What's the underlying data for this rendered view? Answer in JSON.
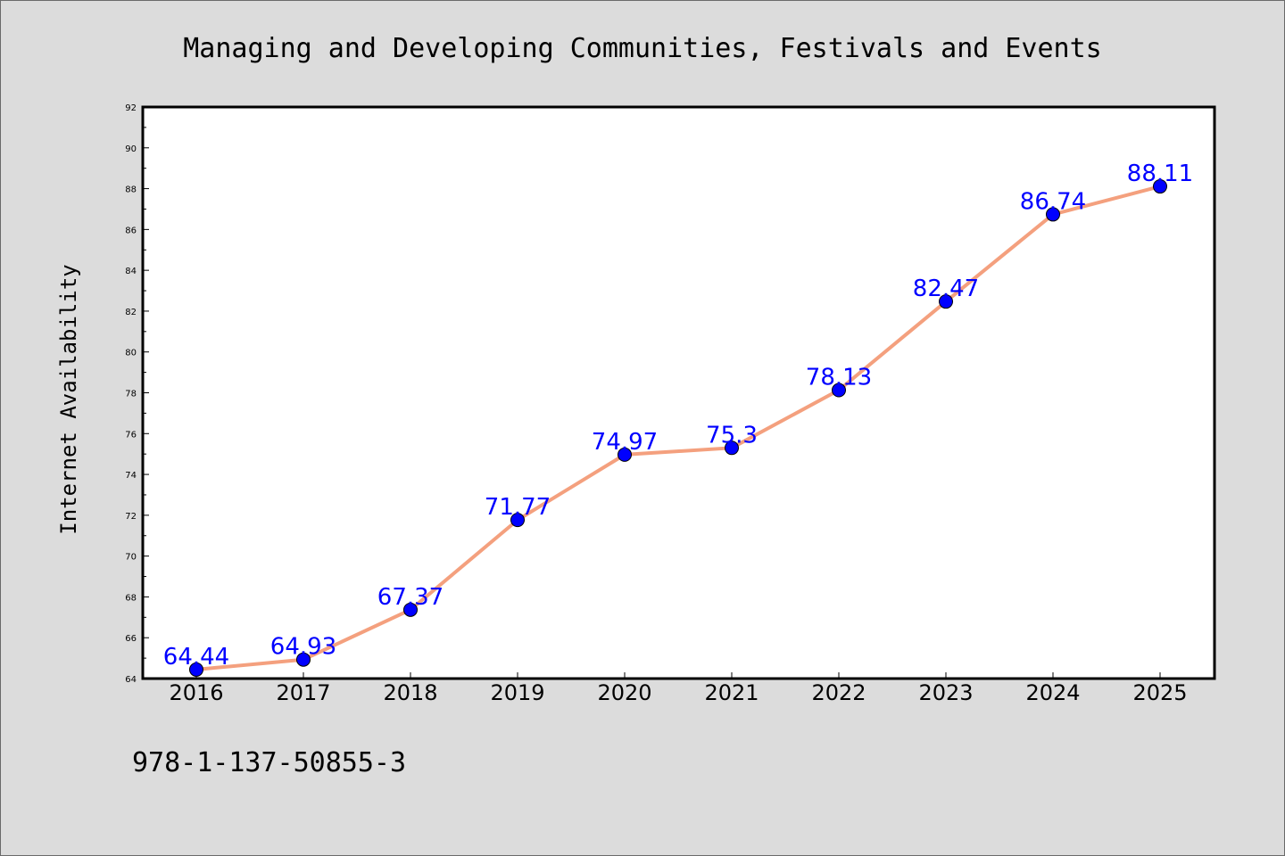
{
  "chart_data": {
    "type": "line",
    "title": "Managing and Developing Communities, Festivals and Events",
    "xlabel": "",
    "ylabel": "Internet Availability",
    "x": [
      "2016",
      "2017",
      "2018",
      "2019",
      "2020",
      "2021",
      "2022",
      "2023",
      "2024",
      "2025"
    ],
    "series": [
      {
        "values": [
          64.44,
          64.93,
          67.37,
          71.77,
          74.97,
          75.3,
          78.13,
          82.47,
          86.74,
          88.11
        ],
        "data_labels": [
          "64.44",
          "64.93",
          "67.37",
          "71.77",
          "74.97",
          "75.3",
          "78.13",
          "82.47",
          "86.74",
          "88.11"
        ]
      }
    ],
    "ylim": [
      64,
      92
    ],
    "yticks": [
      64,
      66,
      68,
      70,
      72,
      74,
      76,
      78,
      80,
      82,
      84,
      86,
      88,
      90,
      92
    ],
    "grid": false,
    "legend": "none",
    "colors": {
      "line": "#f4a07e",
      "marker": "#0000ff",
      "data_label": "#0000ff",
      "background": "#dcdcdc",
      "plot_area": "#ffffff"
    }
  },
  "footer_text": "978-1-137-50855-3"
}
